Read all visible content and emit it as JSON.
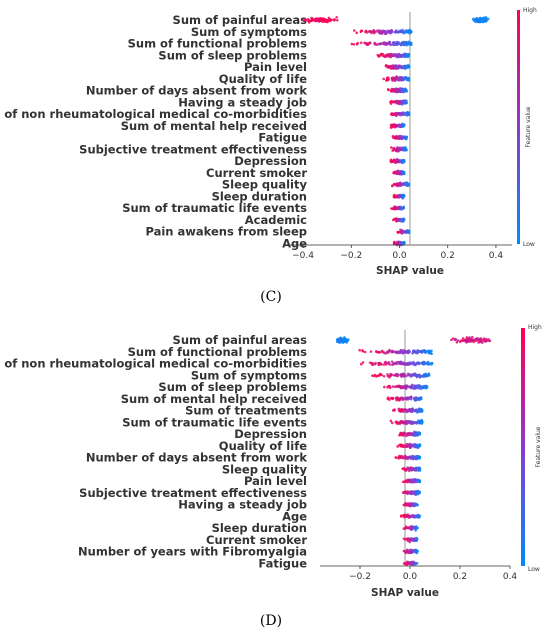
{
  "colors": {
    "high": "#ff0052",
    "low": "#008bfb"
  },
  "chart_data": [
    {
      "type": "scatter",
      "panel_label": "(C)",
      "xlabel": "SHAP value",
      "xlim": [
        -0.45,
        0.45
      ],
      "xticks": [
        -0.4,
        -0.2,
        0.0,
        0.2,
        0.4
      ],
      "xtick_labels": [
        "−0.4",
        "−0.2",
        "0.0",
        "0.2",
        "0.4"
      ],
      "colorbar": {
        "title": "Feature value",
        "high": "High",
        "low": "Low"
      },
      "features": [
        {
          "name": "Sum of painful areas",
          "min": -0.42,
          "max": 0.38,
          "bimodal": [
            -0.33,
            0.34
          ]
        },
        {
          "name": "Sum of symptoms",
          "min": -0.2,
          "max": 0.05
        },
        {
          "name": "Sum of functional problems",
          "min": -0.2,
          "max": 0.05
        },
        {
          "name": "Sum of sleep problems",
          "min": -0.1,
          "max": 0.04
        },
        {
          "name": "Pain level",
          "min": -0.08,
          "max": 0.04
        },
        {
          "name": "Quality of life ",
          "min": -0.07,
          "max": 0.04
        },
        {
          "name": "Number of days absent from work",
          "min": -0.05,
          "max": 0.03
        },
        {
          "name": "Having a steady job",
          "min": -0.04,
          "max": 0.03
        },
        {
          "name": "Sum of non rheumatological medical co-morbidities",
          "min": -0.05,
          "max": 0.04
        },
        {
          "name": "Sum of mental help received",
          "min": -0.04,
          "max": 0.02
        },
        {
          "name": "Fatigue ",
          "min": -0.03,
          "max": 0.03
        },
        {
          "name": "Subjective treatment effectiveness",
          "min": -0.04,
          "max": 0.03
        },
        {
          "name": "Depression ",
          "min": -0.04,
          "max": 0.02
        },
        {
          "name": "Current smoker",
          "min": -0.03,
          "max": 0.02
        },
        {
          "name": "Sleep quality ",
          "min": -0.04,
          "max": 0.04
        },
        {
          "name": "Sleep duration",
          "min": -0.03,
          "max": 0.02
        },
        {
          "name": "Sum of traumatic life events",
          "min": -0.04,
          "max": 0.02
        },
        {
          "name": "Academic ",
          "min": -0.03,
          "max": 0.02
        },
        {
          "name": "Pain awakens from sleep",
          "min": -0.02,
          "max": 0.04
        },
        {
          "name": "Age",
          "min": -0.03,
          "max": 0.02
        }
      ]
    },
    {
      "type": "scatter",
      "panel_label": "(D)",
      "xlabel": "SHAP value",
      "xlim": [
        -0.36,
        0.4
      ],
      "xticks": [
        -0.2,
        0.0,
        0.2,
        0.4
      ],
      "xtick_labels": [
        "−0.2",
        "0.0",
        "0.2",
        "0.4"
      ],
      "colorbar": {
        "title": "Feature value",
        "high": "High",
        "low": "Low"
      },
      "features": [
        {
          "name": "Sum of painful areas",
          "min": -0.3,
          "max": 0.37,
          "bimodal": [
            -0.27,
            0.25
          ]
        },
        {
          "name": "Sum of functional problems",
          "min": -0.22,
          "max": 0.09
        },
        {
          "name": "Sum of non rheumatological medical co-morbidities",
          "min": -0.2,
          "max": 0.09
        },
        {
          "name": "Sum of symptoms",
          "min": -0.16,
          "max": 0.08
        },
        {
          "name": "Sum of sleep problems",
          "min": -0.12,
          "max": 0.07
        },
        {
          "name": "Sum of mental help received",
          "min": -0.1,
          "max": 0.05
        },
        {
          "name": "Sum of treatments",
          "min": -0.08,
          "max": 0.05
        },
        {
          "name": "Sum of traumatic life events",
          "min": -0.08,
          "max": 0.05
        },
        {
          "name": "Depression",
          "min": -0.05,
          "max": 0.04
        },
        {
          "name": "Quality of life ",
          "min": -0.05,
          "max": 0.04
        },
        {
          "name": "Number of days absent from work",
          "min": -0.07,
          "max": 0.04
        },
        {
          "name": "Sleep quality ",
          "min": -0.04,
          "max": 0.04
        },
        {
          "name": "Pain level",
          "min": -0.04,
          "max": 0.04
        },
        {
          "name": "Subjective treatment effectiveness",
          "min": -0.05,
          "max": 0.04
        },
        {
          "name": "Having a steady job",
          "min": -0.03,
          "max": 0.03
        },
        {
          "name": "Age",
          "min": -0.04,
          "max": 0.04
        },
        {
          "name": "Sleep duration",
          "min": -0.03,
          "max": 0.03
        },
        {
          "name": "Current smoker",
          "min": -0.03,
          "max": 0.03
        },
        {
          "name": "Number of years with Fibromyalgia",
          "min": -0.04,
          "max": 0.03
        },
        {
          "name": "Fatigue ",
          "min": -0.03,
          "max": 0.03
        }
      ]
    }
  ]
}
